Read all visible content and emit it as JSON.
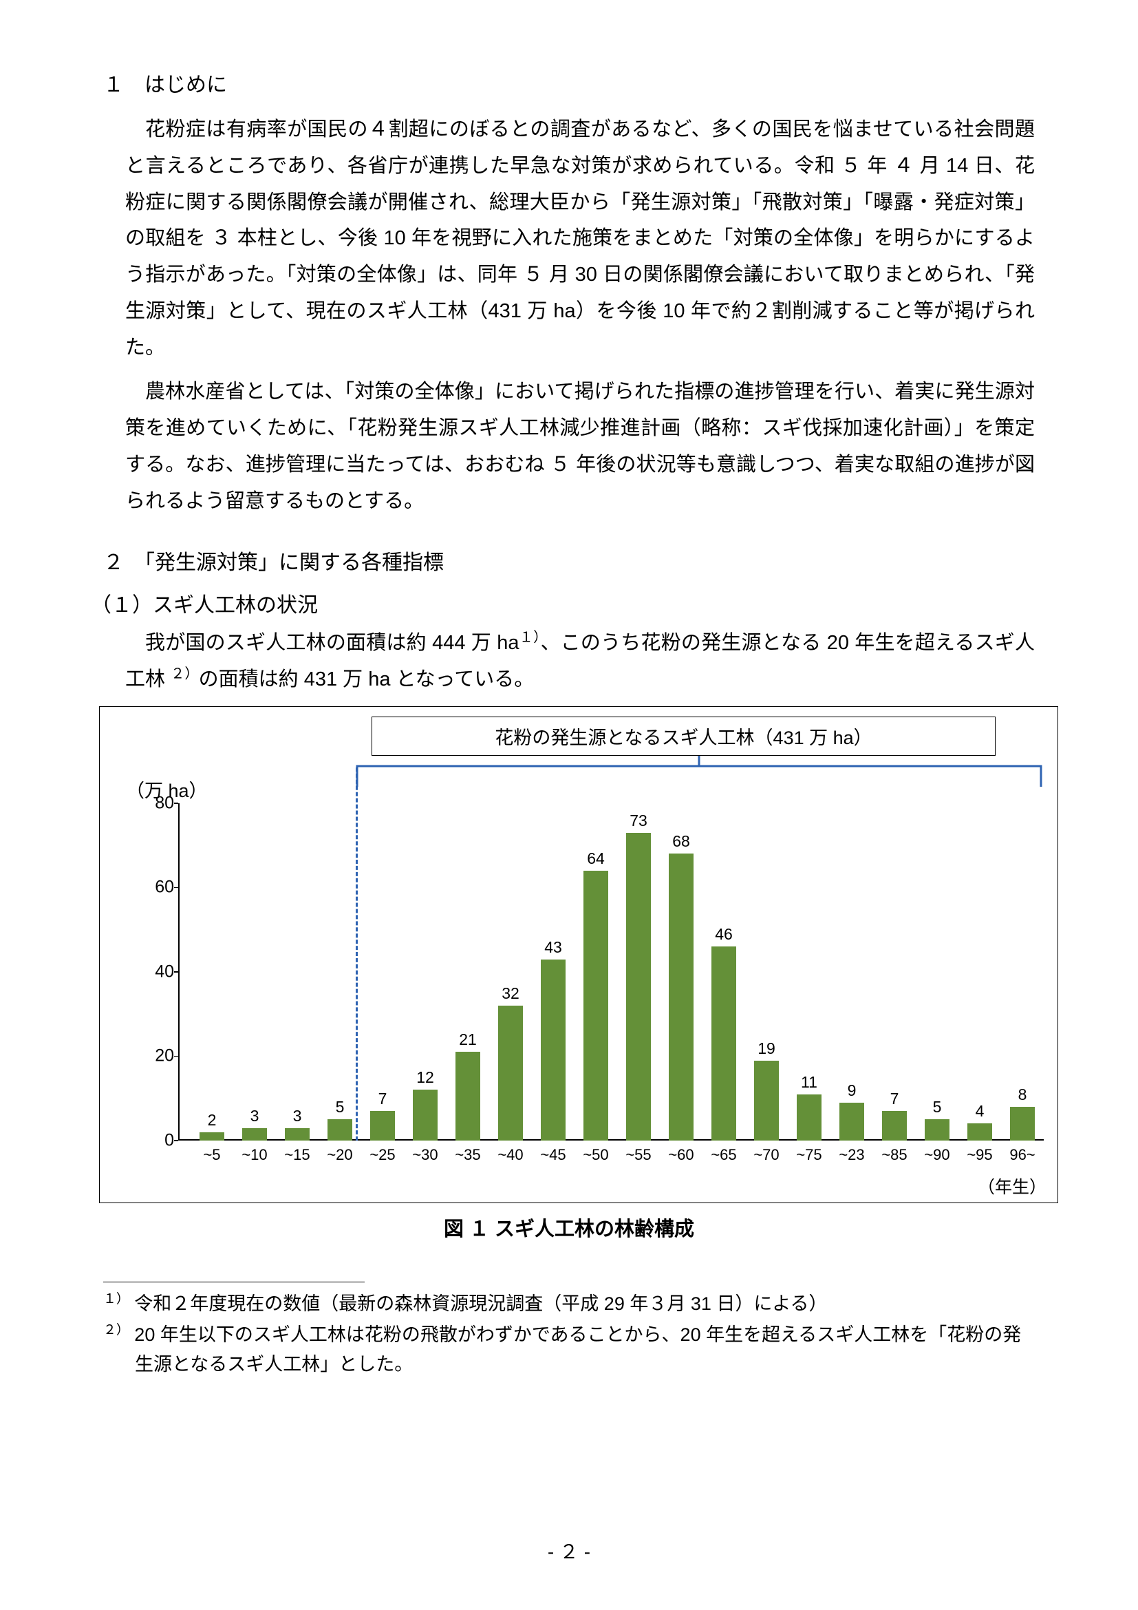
{
  "section1_title": "１　はじめに",
  "para1": "花粉症は有病率が国民の４割超にのぼるとの調査があるなど、多くの国民を悩ませている社会問題と言えるところであり、各省庁が連携した早急な対策が求められている。令和 ５ 年 ４ 月 14 日、花粉症に関する関係閣僚会議が開催され、総理大臣から「発生源対策」「飛散対策」「曝露・発症対策」の取組を ３ 本柱とし、今後 10 年を視野に入れた施策をまとめた「対策の全体像」を明らかにするよう指示があった。「対策の全体像」は、同年 ５ 月 30 日の関係閣僚会議において取りまとめられ、「発生源対策」として、現在のスギ人工林（431 万 ha）を今後 10 年で約２割削減すること等が掲げられた。",
  "para2": "農林水産省としては、「対策の全体像」において掲げられた指標の進捗管理を行い、着実に発生源対策を進めていくために、「花粉発生源スギ人工林減少推進計画（略称：スギ伐採加速化計画）」を策定する。なお、進捗管理に当たっては、おおむね ５ 年後の状況等も意識しつつ、着実な取組の進捗が図られるよう留意するものとする。",
  "section2_title": "２　「発生源対策」に関する各種指標",
  "sub1_title": "（１）スギ人工林の状況",
  "para3_a": "我が国のスギ人工林の面積は約 444 万 ha",
  "para3_b": "、このうち花粉の発生源となる 20 年生を超えるスギ人工林 ",
  "para3_c": "の面積は約 431 万 ha となっている。",
  "sup1": "１）",
  "sup2": "２）",
  "chart": {
    "box_label": "花粉の発生源となるスギ人工林（431 万 ha）",
    "y_axis_label": "（万 ha）",
    "x_axis_label": "（年生）",
    "ylim": [
      0,
      80
    ],
    "ytick_step": 20,
    "bar_color": "#649038",
    "categories": [
      "~5",
      "~10",
      "~15",
      "~20",
      "~25",
      "~30",
      "~35",
      "~40",
      "~45",
      "~50",
      "~55",
      "~60",
      "~65",
      "~70",
      "~75",
      "~23",
      "~85",
      "~90",
      "~95",
      "96~"
    ],
    "values": [
      2,
      3,
      3,
      5,
      7,
      12,
      21,
      32,
      43,
      64,
      73,
      68,
      46,
      19,
      11,
      9,
      7,
      5,
      4,
      8
    ],
    "dashed_line_after_index": 3,
    "dashed_line_color": "#2e63b2",
    "bracket_color": "#2e63b2",
    "background_color": "#ffffff"
  },
  "fig_caption": "図 １ スギ人工林の林齢構成",
  "footnote1_mark": "１）",
  "footnote1": "令和２年度現在の数値（最新の森林資源現況調査（平成 29 年３月 31 日）による）",
  "footnote2_mark": "２）",
  "footnote2": "20 年生以下のスギ人工林は花粉の飛散がわずかであることから、20 年生を超えるスギ人工林を「花粉の発生源となるスギ人工林」とした。",
  "page_number": "- ２ -"
}
